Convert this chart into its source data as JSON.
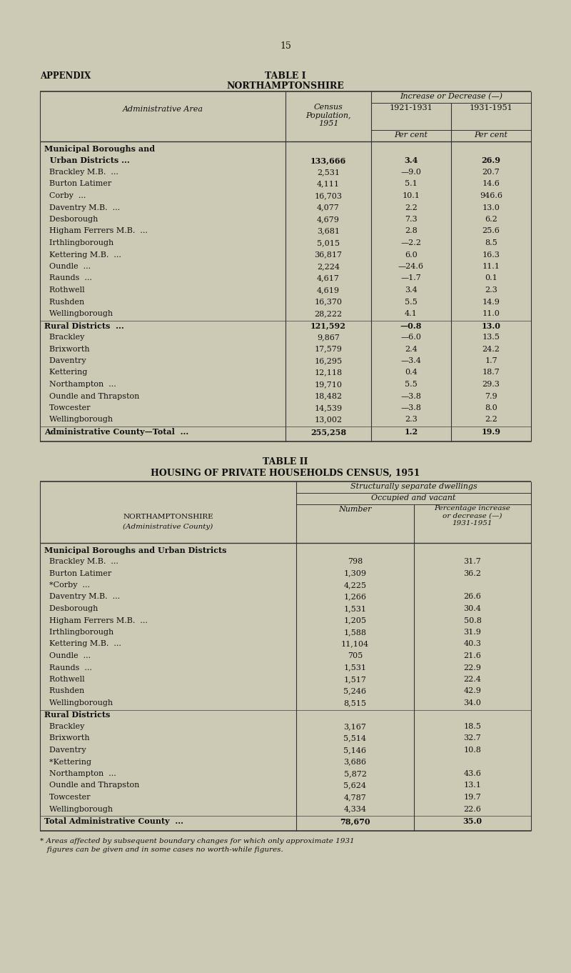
{
  "page_num": "15",
  "appendix_label": "APPENDIX",
  "table1_title": "TABLE I",
  "table1_subtitle": "NORTHAMPTONSHIRE",
  "table2_title": "TABLE II",
  "table2_subtitle": "HOUSING OF PRIVATE HOUSEHOLDS CENSUS, 1951",
  "bg_color": "#ceca b4",
  "text_color": "#1a1a1a",
  "table1_rows": [
    [
      "Municipal Boroughs and",
      "",
      "",
      "",
      "bold_cat"
    ],
    [
      "  Urban Districts ...",
      "133,666",
      "3.4",
      "26.9",
      "bold"
    ],
    [
      "  Brackley M.B.  ...",
      "2,531",
      "—9.0",
      "20.7",
      "normal"
    ],
    [
      "  Burton Latimer",
      "4,111",
      "5.1",
      "14.6",
      "normal"
    ],
    [
      "  Corby  ...",
      "16,703",
      "10.1",
      "946.6",
      "normal"
    ],
    [
      "  Daventry M.B.  ...",
      "4,077",
      "2.2",
      "13.0",
      "normal"
    ],
    [
      "  Desborough",
      "4,679",
      "7.3",
      "6.2",
      "normal"
    ],
    [
      "  Higham Ferrers M.B.  ...",
      "3,681",
      "2.8",
      "25.6",
      "normal"
    ],
    [
      "  Irthlingborough",
      "5,015",
      "—2.2",
      "8.5",
      "normal"
    ],
    [
      "  Kettering M.B.  ...",
      "36,817",
      "6.0",
      "16.3",
      "normal"
    ],
    [
      "  Oundle  ...",
      "2,224",
      "—24.6",
      "11.1",
      "normal"
    ],
    [
      "  Raunds  ...",
      "4,617",
      "—1.7",
      "0.1",
      "normal"
    ],
    [
      "  Rothwell",
      "4,619",
      "3.4",
      "2.3",
      "normal"
    ],
    [
      "  Rushden",
      "16,370",
      "5.5",
      "14.9",
      "normal"
    ],
    [
      "  Wellingborough",
      "28,222",
      "4.1",
      "11.0",
      "normal"
    ],
    [
      "Rural Districts  ...",
      "121,592",
      "—0.8",
      "13.0",
      "bold"
    ],
    [
      "  Brackley",
      "9,867",
      "—6.0",
      "13.5",
      "normal"
    ],
    [
      "  Brixworth",
      "17,579",
      "2.4",
      "24.2",
      "normal"
    ],
    [
      "  Daventry",
      "16,295",
      "—3.4",
      "1.7",
      "normal"
    ],
    [
      "  Kettering",
      "12,118",
      "0.4",
      "18.7",
      "normal"
    ],
    [
      "  Northampton  ...",
      "19,710",
      "5.5",
      "29.3",
      "normal"
    ],
    [
      "  Oundle and Thrapston",
      "18,482",
      "—3.8",
      "7.9",
      "normal"
    ],
    [
      "  Towcester",
      "14,539",
      "—3.8",
      "8.0",
      "normal"
    ],
    [
      "  Wellingborough",
      "13,002",
      "2.3",
      "2.2",
      "normal"
    ],
    [
      "Administrative County—Total  ...",
      "255,258",
      "1.2",
      "19.9",
      "bold"
    ]
  ],
  "table2_rows": [
    [
      "Municipal Boroughs and Urban Districts",
      "",
      "",
      "bold"
    ],
    [
      "  Brackley M.B.  ...",
      "798",
      "31.7",
      "normal"
    ],
    [
      "  Burton Latimer",
      "1,309",
      "36.2",
      "normal"
    ],
    [
      "  *Corby  ...",
      "4,225",
      "",
      "normal"
    ],
    [
      "  Daventry M.B.  ...",
      "1,266",
      "26.6",
      "normal"
    ],
    [
      "  Desborough",
      "1,531",
      "30.4",
      "normal"
    ],
    [
      "  Higham Ferrers M.B.  ...",
      "1,205",
      "50.8",
      "normal"
    ],
    [
      "  Irthlingborough",
      "1,588",
      "31.9",
      "normal"
    ],
    [
      "  Kettering M.B.  ...",
      "11,104",
      "40.3",
      "normal"
    ],
    [
      "  Oundle  ...",
      "705",
      "21.6",
      "normal"
    ],
    [
      "  Raunds  ...",
      "1,531",
      "22.9",
      "normal"
    ],
    [
      "  Rothwell",
      "1,517",
      "22.4",
      "normal"
    ],
    [
      "  Rushden",
      "5,246",
      "42.9",
      "normal"
    ],
    [
      "  Wellingborough",
      "8,515",
      "34.0",
      "normal"
    ],
    [
      "Rural Districts",
      "",
      "",
      "bold"
    ],
    [
      "  Brackley",
      "3,167",
      "18.5",
      "normal"
    ],
    [
      "  Brixworth",
      "5,514",
      "32.7",
      "normal"
    ],
    [
      "  Daventry",
      "5,146",
      "10.8",
      "normal"
    ],
    [
      "  *Kettering",
      "3,686",
      "",
      "normal"
    ],
    [
      "  Northampton  ...",
      "5,872",
      "43.6",
      "normal"
    ],
    [
      "  Oundle and Thrapston",
      "5,624",
      "13.1",
      "normal"
    ],
    [
      "  Towcester",
      "4,787",
      "19.7",
      "normal"
    ],
    [
      "  Wellingborough",
      "4,334",
      "22.6",
      "normal"
    ],
    [
      "Total Administrative County  ...",
      "78,670",
      "35.0",
      "bold"
    ]
  ],
  "table2_footnote_line1": "* Areas affected by subsequent boundary changes for which only approximate 1931",
  "table2_footnote_line2": "   figures can be given and in some cases no worth-while figures."
}
